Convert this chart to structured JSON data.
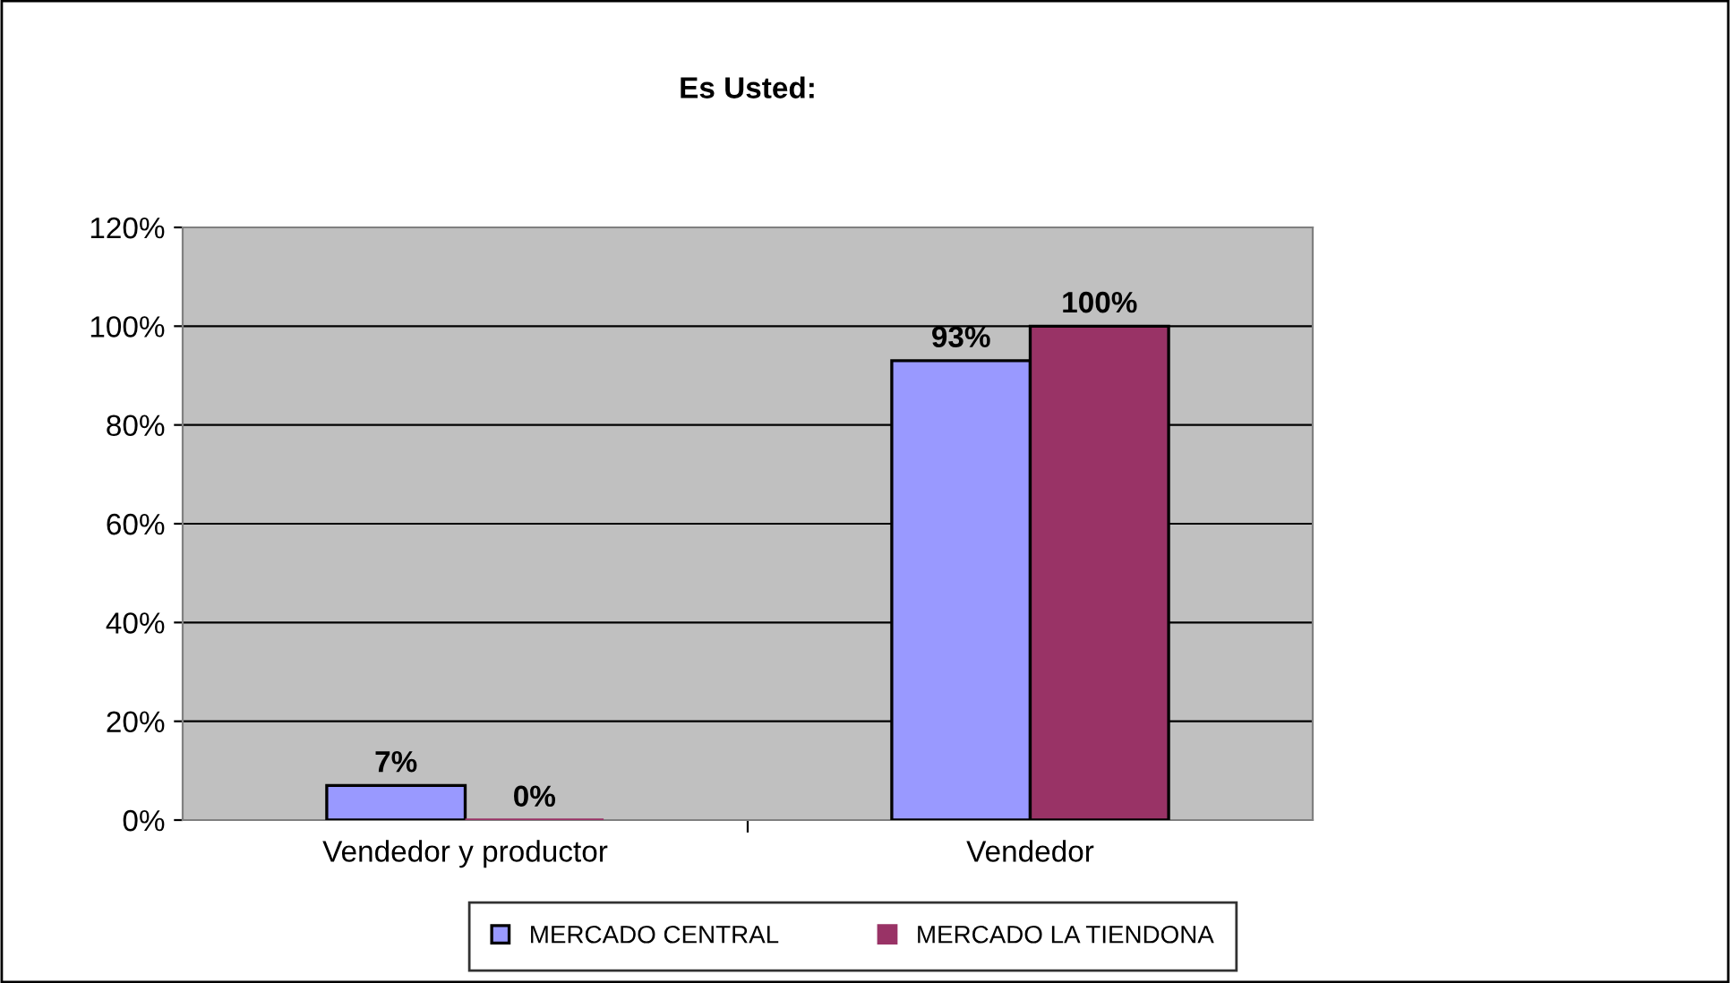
{
  "chart_data": {
    "type": "bar",
    "title": "Es Usted:",
    "categories": [
      "Vendedor y productor",
      "Vendedor"
    ],
    "series": [
      {
        "name": "MERCADO CENTRAL",
        "color": "#9999ff",
        "values": [
          7,
          93
        ],
        "value_labels": [
          "7%",
          "93%"
        ]
      },
      {
        "name": "MERCADO LA TIENDONA",
        "color": "#993366",
        "values": [
          0,
          100
        ],
        "value_labels": [
          "0%",
          "100%"
        ]
      }
    ],
    "ylim": [
      0,
      120
    ],
    "yticks": [
      {
        "value": 0,
        "label": "0%"
      },
      {
        "value": 20,
        "label": "20%"
      },
      {
        "value": 40,
        "label": "40%"
      },
      {
        "value": 60,
        "label": "60%"
      },
      {
        "value": 80,
        "label": "80%"
      },
      {
        "value": 100,
        "label": "100%"
      },
      {
        "value": 120,
        "label": "120%"
      }
    ],
    "grid": "y",
    "legend": "bottom"
  }
}
